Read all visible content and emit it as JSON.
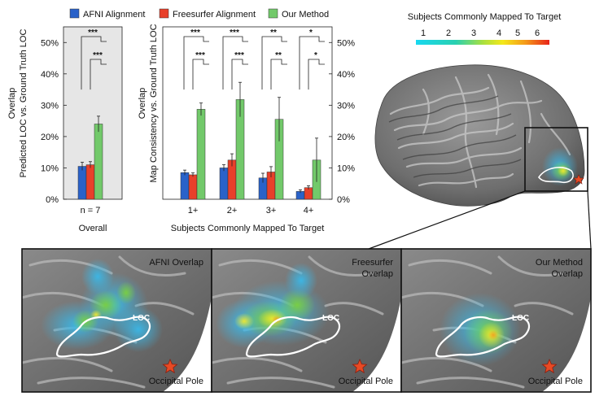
{
  "legend": {
    "items": [
      {
        "label": "AFNI Alignment",
        "color": "#2a62c9"
      },
      {
        "label": "Freesurfer Alignment",
        "color": "#e8402a"
      },
      {
        "label": "Our Method",
        "color": "#72c96a"
      }
    ]
  },
  "colorbar": {
    "title": "Subjects Commonly Mapped To Target",
    "ticks": [
      "1",
      "2",
      "3",
      "4",
      "5",
      "6"
    ]
  },
  "chart_data": [
    {
      "type": "bar",
      "title": "",
      "xlabel": "Overall",
      "ylabel": "Overlap\nPredicted LOC vs. Ground Truth LOC",
      "ylabel_lines": [
        "Overlap",
        "Predicted LOC vs. Ground Truth LOC"
      ],
      "ylim": [
        0,
        55
      ],
      "yticks": [
        "0%",
        "10%",
        "20%",
        "30%",
        "40%",
        "50%"
      ],
      "categories": [
        "n = 7"
      ],
      "series": [
        {
          "name": "AFNI Alignment",
          "values": [
            10.5
          ],
          "errors": [
            1.3
          ]
        },
        {
          "name": "Freesurfer Alignment",
          "values": [
            11.0
          ],
          "errors": [
            1.0
          ]
        },
        {
          "name": "Our Method",
          "values": [
            24.0
          ],
          "errors": [
            2.5
          ]
        }
      ],
      "significance": [
        {
          "category": "n = 7",
          "upper": "***",
          "lower": "***"
        }
      ],
      "background": "#e6e6e6"
    },
    {
      "type": "bar",
      "title": "",
      "xlabel": "Subjects Commonly Mapped To Target",
      "ylabel": "Overlap\nMap Consistency vs. Ground Truth LOC",
      "ylabel_lines": [
        "Overlap",
        "Map Consistency vs. Ground Truth LOC"
      ],
      "ylim": [
        0,
        55
      ],
      "yticks": [
        "0%",
        "10%",
        "20%",
        "30%",
        "40%",
        "50%"
      ],
      "categories": [
        "1+",
        "2+",
        "3+",
        "4+"
      ],
      "series": [
        {
          "name": "AFNI Alignment",
          "values": [
            8.5,
            10.0,
            6.8,
            2.5
          ],
          "errors": [
            0.8,
            1.0,
            1.5,
            0.5
          ]
        },
        {
          "name": "Freesurfer Alignment",
          "values": [
            7.8,
            12.5,
            8.7,
            3.7
          ],
          "errors": [
            0.6,
            2.0,
            1.7,
            0.6
          ]
        },
        {
          "name": "Our Method",
          "values": [
            28.7,
            31.8,
            25.5,
            12.5
          ],
          "errors": [
            2.0,
            5.5,
            7.0,
            7.0
          ]
        }
      ],
      "significance": [
        {
          "category": "1+",
          "upper": "***",
          "lower": "***"
        },
        {
          "category": "2+",
          "upper": "***",
          "lower": "***"
        },
        {
          "category": "3+",
          "upper": "**",
          "lower": "**"
        },
        {
          "category": "4+",
          "upper": "*",
          "lower": "*"
        }
      ]
    }
  ],
  "brain": {
    "panels": [
      {
        "id": "afni",
        "title_lines": [
          "AFNI Overlap"
        ],
        "roi_label": "LOC",
        "pole_label": "Occipital Pole"
      },
      {
        "id": "freesurfer",
        "title_lines": [
          "Freesurfer",
          "Overlap"
        ],
        "roi_label": "LOC",
        "pole_label": "Occipital Pole"
      },
      {
        "id": "ours",
        "title_lines": [
          "Our Method",
          "Overlap"
        ],
        "roi_label": "LOC",
        "pole_label": "Occipital Pole"
      }
    ]
  }
}
